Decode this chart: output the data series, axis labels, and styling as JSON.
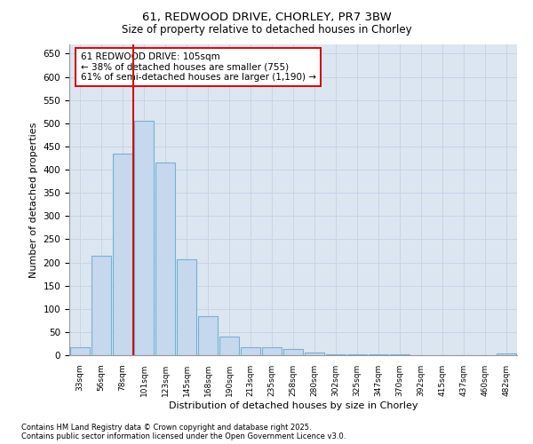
{
  "title_line1": "61, REDWOOD DRIVE, CHORLEY, PR7 3BW",
  "title_line2": "Size of property relative to detached houses in Chorley",
  "xlabel": "Distribution of detached houses by size in Chorley",
  "ylabel": "Number of detached properties",
  "categories": [
    "33sqm",
    "56sqm",
    "78sqm",
    "101sqm",
    "123sqm",
    "145sqm",
    "168sqm",
    "190sqm",
    "213sqm",
    "235sqm",
    "258sqm",
    "280sqm",
    "302sqm",
    "325sqm",
    "347sqm",
    "370sqm",
    "392sqm",
    "415sqm",
    "437sqm",
    "460sqm",
    "482sqm"
  ],
  "values": [
    18,
    215,
    435,
    505,
    415,
    207,
    85,
    40,
    18,
    17,
    13,
    5,
    2,
    1,
    1,
    1,
    0,
    0,
    0,
    0,
    3
  ],
  "bar_color": "#c5d8ee",
  "bar_edge_color": "#7ab0d4",
  "bar_edge_width": 0.8,
  "grid_color": "#c8d4e4",
  "background_color": "#dce6f0",
  "vline_color": "#cc1111",
  "vline_x_index": 3,
  "annotation_text_line1": "61 REDWOOD DRIVE: 105sqm",
  "annotation_text_line2": "← 38% of detached houses are smaller (755)",
  "annotation_text_line3": "61% of semi-detached houses are larger (1,190) →",
  "annotation_box_color": "#ffffff",
  "annotation_box_edge": "#cc1111",
  "ylim_max": 670,
  "yticks": [
    0,
    50,
    100,
    150,
    200,
    250,
    300,
    350,
    400,
    450,
    500,
    550,
    600,
    650
  ],
  "footnote1": "Contains HM Land Registry data © Crown copyright and database right 2025.",
  "footnote2": "Contains public sector information licensed under the Open Government Licence v3.0."
}
